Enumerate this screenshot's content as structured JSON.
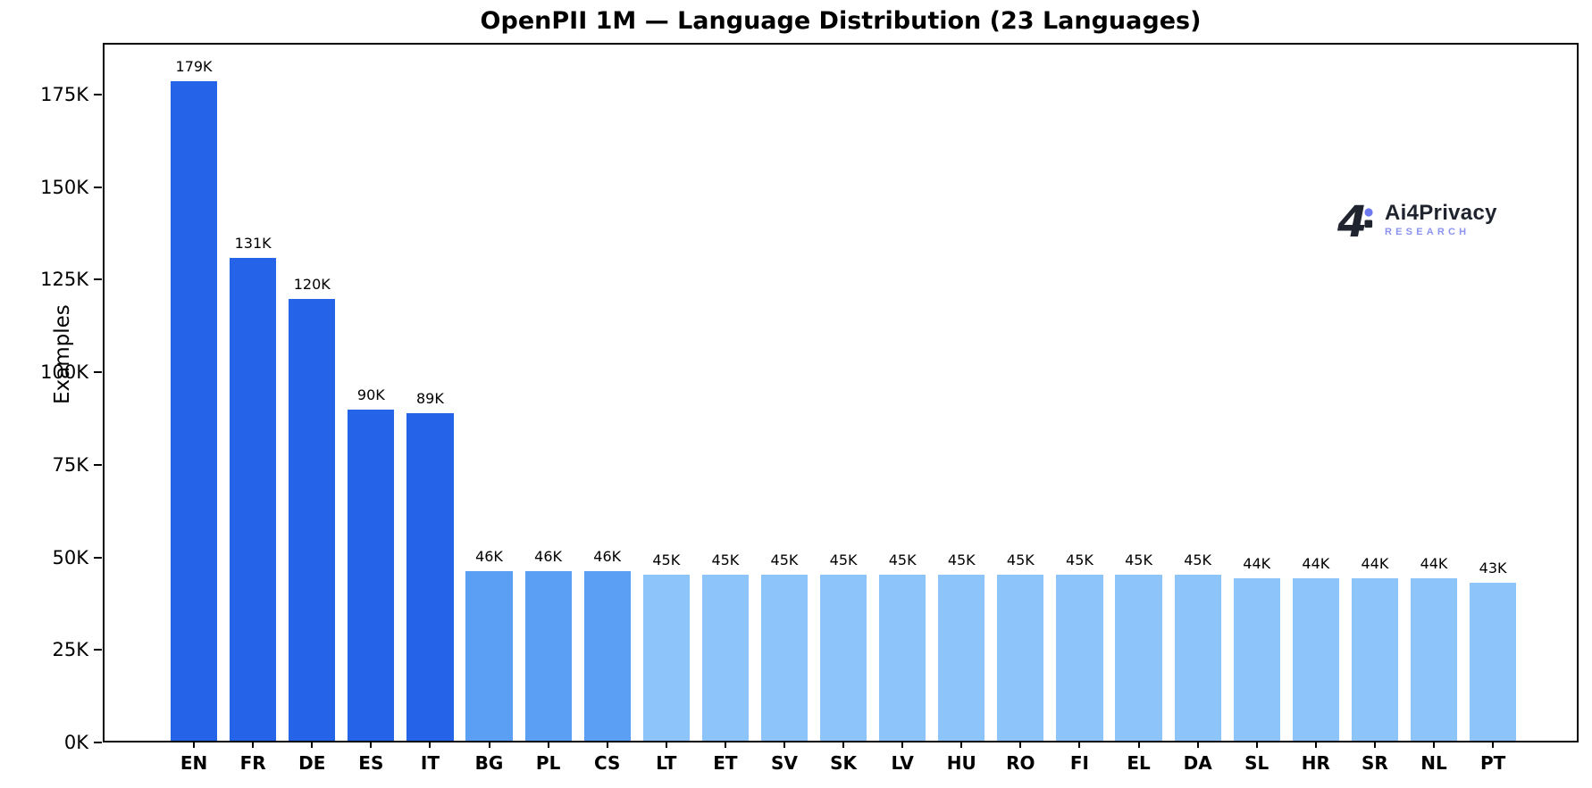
{
  "chart_data": {
    "type": "bar",
    "title": "OpenPII 1M — Language Distribution (23 Languages)",
    "xlabel": "",
    "ylabel": "Examples",
    "categories": [
      "EN",
      "FR",
      "DE",
      "ES",
      "IT",
      "BG",
      "PL",
      "CS",
      "LT",
      "ET",
      "SV",
      "SK",
      "LV",
      "HU",
      "RO",
      "FI",
      "EL",
      "DA",
      "SL",
      "HR",
      "SR",
      "NL",
      "PT"
    ],
    "values": [
      179000,
      131000,
      120000,
      90000,
      89000,
      46000,
      46000,
      46000,
      45000,
      45000,
      45000,
      45000,
      45000,
      45000,
      45000,
      45000,
      45000,
      45000,
      44000,
      44000,
      44000,
      44000,
      43000
    ],
    "bar_labels": [
      "179K",
      "131K",
      "120K",
      "90K",
      "89K",
      "46K",
      "46K",
      "46K",
      "45K",
      "45K",
      "45K",
      "45K",
      "45K",
      "45K",
      "45K",
      "45K",
      "45K",
      "45K",
      "44K",
      "44K",
      "44K",
      "44K",
      "43K"
    ],
    "bar_colors": [
      "#2563e8",
      "#2563e8",
      "#2563e8",
      "#2563e8",
      "#2563e8",
      "#5b9ff5",
      "#5b9ff5",
      "#5b9ff5",
      "#8dc4f9",
      "#8dc4f9",
      "#8dc4f9",
      "#8dc4f9",
      "#8dc4f9",
      "#8dc4f9",
      "#8dc4f9",
      "#8dc4f9",
      "#8dc4f9",
      "#8dc4f9",
      "#8dc4f9",
      "#8dc4f9",
      "#8dc4f9",
      "#8dc4f9",
      "#8dc4f9"
    ],
    "ytick_labels": [
      "0K",
      "25K",
      "50K",
      "75K",
      "100K",
      "125K",
      "150K",
      "175K"
    ],
    "ytick_values": [
      0,
      25000,
      50000,
      75000,
      100000,
      125000,
      150000,
      175000
    ],
    "ylim": [
      0,
      189000
    ],
    "grid": false,
    "legend_position": "none"
  },
  "logo": {
    "mark": "4",
    "title": "Ai4Privacy",
    "subtitle": "RESEARCH",
    "title_color": "#20242f",
    "subtitle_color": "#8a93f0",
    "dot_color": "#6e79f1"
  }
}
